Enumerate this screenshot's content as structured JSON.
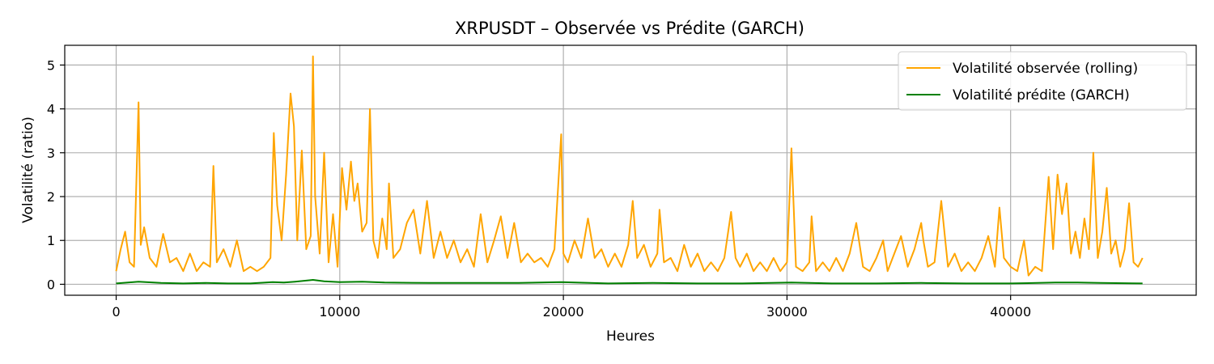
{
  "chart_data": {
    "type": "line",
    "title": "XRPUSDT – Observée vs Prédite (GARCH)",
    "xlabel": "Heures",
    "ylabel": "Volatilité (ratio)",
    "xlim": [
      -2300,
      48300
    ],
    "ylim": [
      -0.25,
      5.45
    ],
    "xticks": [
      0,
      10000,
      20000,
      30000,
      40000
    ],
    "yticks": [
      0,
      1,
      2,
      3,
      4,
      5
    ],
    "grid": true,
    "legend_position": "top-right",
    "series": [
      {
        "name": "Volatilité observée (rolling)",
        "color": "#ffa500",
        "x": [
          0,
          200,
          400,
          600,
          800,
          1000,
          1100,
          1250,
          1500,
          1800,
          2100,
          2400,
          2700,
          3000,
          3300,
          3600,
          3900,
          4200,
          4350,
          4500,
          4800,
          5100,
          5400,
          5700,
          6000,
          6300,
          6600,
          6900,
          7050,
          7200,
          7400,
          7600,
          7800,
          7950,
          8100,
          8300,
          8500,
          8700,
          8800,
          8900,
          9100,
          9300,
          9500,
          9700,
          9900,
          10100,
          10300,
          10500,
          10650,
          10800,
          11000,
          11200,
          11350,
          11500,
          11700,
          11900,
          12100,
          12200,
          12400,
          12700,
          13000,
          13300,
          13600,
          13900,
          14200,
          14500,
          14800,
          15100,
          15400,
          15700,
          16000,
          16300,
          16600,
          16900,
          17200,
          17500,
          17800,
          18100,
          18400,
          18700,
          19000,
          19300,
          19600,
          19900,
          20000,
          20200,
          20500,
          20800,
          21100,
          21400,
          21700,
          22000,
          22300,
          22600,
          22900,
          23100,
          23300,
          23600,
          23900,
          24200,
          24300,
          24500,
          24800,
          25100,
          25400,
          25700,
          26000,
          26300,
          26600,
          26900,
          27200,
          27500,
          27700,
          27900,
          28200,
          28500,
          28800,
          29100,
          29400,
          29700,
          30000,
          30200,
          30400,
          30700,
          31000,
          31100,
          31300,
          31600,
          31900,
          32200,
          32500,
          32800,
          33100,
          33400,
          33700,
          34000,
          34300,
          34500,
          34800,
          35100,
          35400,
          35700,
          36000,
          36100,
          36300,
          36600,
          36900,
          37200,
          37500,
          37800,
          38100,
          38400,
          38700,
          39000,
          39300,
          39500,
          39700,
          40000,
          40300,
          40600,
          40800,
          41100,
          41400,
          41700,
          41900,
          42100,
          42300,
          42500,
          42700,
          42900,
          43100,
          43300,
          43500,
          43700,
          43900,
          44100,
          44300,
          44500,
          44700,
          44900,
          45100,
          45300,
          45500,
          45700,
          45900
        ],
        "y": [
          0.3,
          0.8,
          1.2,
          0.5,
          0.4,
          4.15,
          0.9,
          1.3,
          0.6,
          0.4,
          1.15,
          0.5,
          0.6,
          0.3,
          0.7,
          0.3,
          0.5,
          0.4,
          2.7,
          0.5,
          0.8,
          0.4,
          1.0,
          0.3,
          0.4,
          0.3,
          0.4,
          0.6,
          3.45,
          1.8,
          1.0,
          2.5,
          4.35,
          3.6,
          1.0,
          3.05,
          0.8,
          1.1,
          5.2,
          2.0,
          0.7,
          3.0,
          0.5,
          1.6,
          0.4,
          2.65,
          1.7,
          2.8,
          1.9,
          2.3,
          1.2,
          1.4,
          4.0,
          1.0,
          0.6,
          1.5,
          0.8,
          2.3,
          0.6,
          0.8,
          1.4,
          1.7,
          0.7,
          1.9,
          0.6,
          1.2,
          0.6,
          1.0,
          0.5,
          0.8,
          0.4,
          1.6,
          0.5,
          1.0,
          1.55,
          0.6,
          1.4,
          0.5,
          0.7,
          0.5,
          0.6,
          0.4,
          0.8,
          3.42,
          0.7,
          0.5,
          1.0,
          0.6,
          1.5,
          0.6,
          0.8,
          0.4,
          0.7,
          0.4,
          0.9,
          1.9,
          0.6,
          0.9,
          0.4,
          0.7,
          1.7,
          0.5,
          0.6,
          0.3,
          0.9,
          0.4,
          0.7,
          0.3,
          0.5,
          0.3,
          0.6,
          1.65,
          0.6,
          0.4,
          0.7,
          0.3,
          0.5,
          0.3,
          0.6,
          0.3,
          0.5,
          3.1,
          0.4,
          0.3,
          0.5,
          1.55,
          0.3,
          0.5,
          0.3,
          0.6,
          0.3,
          0.7,
          1.4,
          0.4,
          0.3,
          0.6,
          1.0,
          0.3,
          0.7,
          1.1,
          0.4,
          0.8,
          1.4,
          1.0,
          0.4,
          0.5,
          1.9,
          0.4,
          0.7,
          0.3,
          0.5,
          0.3,
          0.6,
          1.1,
          0.4,
          1.75,
          0.6,
          0.4,
          0.3,
          1.0,
          0.2,
          0.4,
          0.3,
          2.45,
          0.8,
          2.5,
          1.6,
          2.3,
          0.7,
          1.2,
          0.6,
          1.5,
          0.8,
          3.0,
          0.6,
          1.2,
          2.2,
          0.7,
          1.0,
          0.4,
          0.8,
          1.85,
          0.5,
          0.4,
          0.6
        ]
      },
      {
        "name": "Volatilité prédite (GARCH)",
        "color": "#008000",
        "x": [
          0,
          1000,
          2000,
          3000,
          4000,
          5000,
          6000,
          7000,
          7500,
          8000,
          8800,
          9300,
          10000,
          11000,
          12000,
          14000,
          16000,
          18000,
          19900,
          22000,
          24000,
          26000,
          28000,
          30200,
          32000,
          34000,
          36000,
          38000,
          40000,
          42000,
          43000,
          44000,
          45900
        ],
        "y": [
          0.02,
          0.06,
          0.03,
          0.02,
          0.03,
          0.02,
          0.02,
          0.05,
          0.04,
          0.06,
          0.1,
          0.07,
          0.05,
          0.06,
          0.04,
          0.03,
          0.03,
          0.03,
          0.05,
          0.02,
          0.03,
          0.02,
          0.02,
          0.04,
          0.02,
          0.02,
          0.03,
          0.02,
          0.02,
          0.04,
          0.04,
          0.03,
          0.02
        ]
      }
    ]
  }
}
